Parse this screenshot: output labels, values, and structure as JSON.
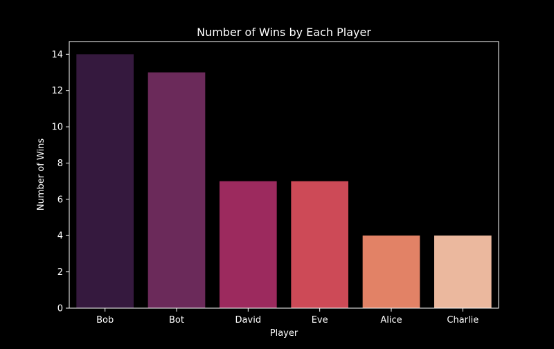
{
  "chart_data": {
    "type": "bar",
    "title": "Number of Wins by Each Player",
    "xlabel": "Player",
    "ylabel": "Number of Wins",
    "categories": [
      "Bob",
      "Bot",
      "David",
      "Eve",
      "Alice",
      "Charlie"
    ],
    "values": [
      14,
      13,
      7,
      7,
      4,
      4
    ],
    "ylim": [
      0,
      14.7
    ],
    "yticks": [
      "0",
      "2",
      "4",
      "6",
      "8",
      "10",
      "12",
      "14"
    ],
    "grid": false,
    "legend": "none",
    "colors": [
      "#35193e",
      "#6b2a5a",
      "#9c2a5e",
      "#cd4a57",
      "#e28266",
      "#ebb89e"
    ],
    "background": "#000000",
    "axis_color": "#ffffff"
  }
}
